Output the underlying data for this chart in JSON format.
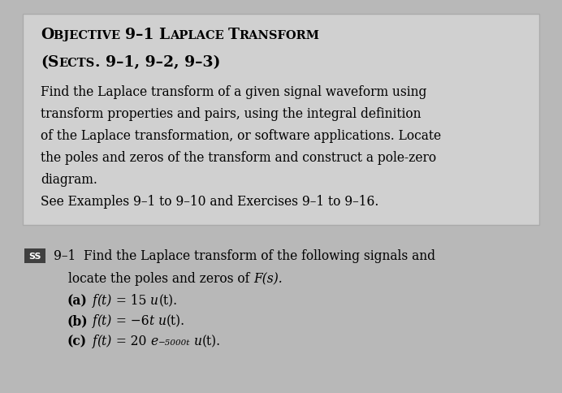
{
  "bg_color": "#b8b8b8",
  "box_color": "#d0d0d0",
  "box_border_color": "#aaaaaa",
  "title_line1_big": [
    "O",
    "L",
    "T"
  ],
  "title_line1_small": [
    "BJECTIVE 9–1 ",
    "APLACE ",
    "RANSFORM"
  ],
  "title_line2": "(SECTS. 9–1, 9–2, 9–3)",
  "body_lines": [
    "Find the Laplace transform of a given signal waveform using",
    "transform properties and pairs, using the integral definition",
    "of the Laplace transformation, or software applications. Locate",
    "the poles and zeros of the transform and construct a pole-zero",
    "diagram.",
    "See Examples 9–1 to 9–10 and Exercises 9–1 to 9–16."
  ],
  "problem_line1": "9–1  Find the Laplace transform of the following signals and",
  "problem_line2": "locate the poles and zeros of ",
  "problem_line2_italic": "F(s).",
  "parts_label": [
    "(a)",
    "(b)",
    "(c)"
  ],
  "parts_italic_a": "f(t)",
  "parts_rest_a": " = 15 ",
  "parts_u_a": "u(t).",
  "parts_italic_b": "f(t)",
  "parts_rest_b": " = −6",
  "parts_t_b": "t",
  "parts_rest2_b": " ",
  "parts_u_b": "u(t).",
  "parts_italic_c_pre": "f(t)",
  "parts_rest_c": " = 20 ",
  "parts_e_c": "e",
  "parts_sup_c": "−5000t",
  "parts_u_c": "u(t).",
  "ss_box_color": "#404040",
  "ss_text_color": "#ffffff",
  "figsize": [
    6.92,
    4.85
  ],
  "dpi": 100
}
